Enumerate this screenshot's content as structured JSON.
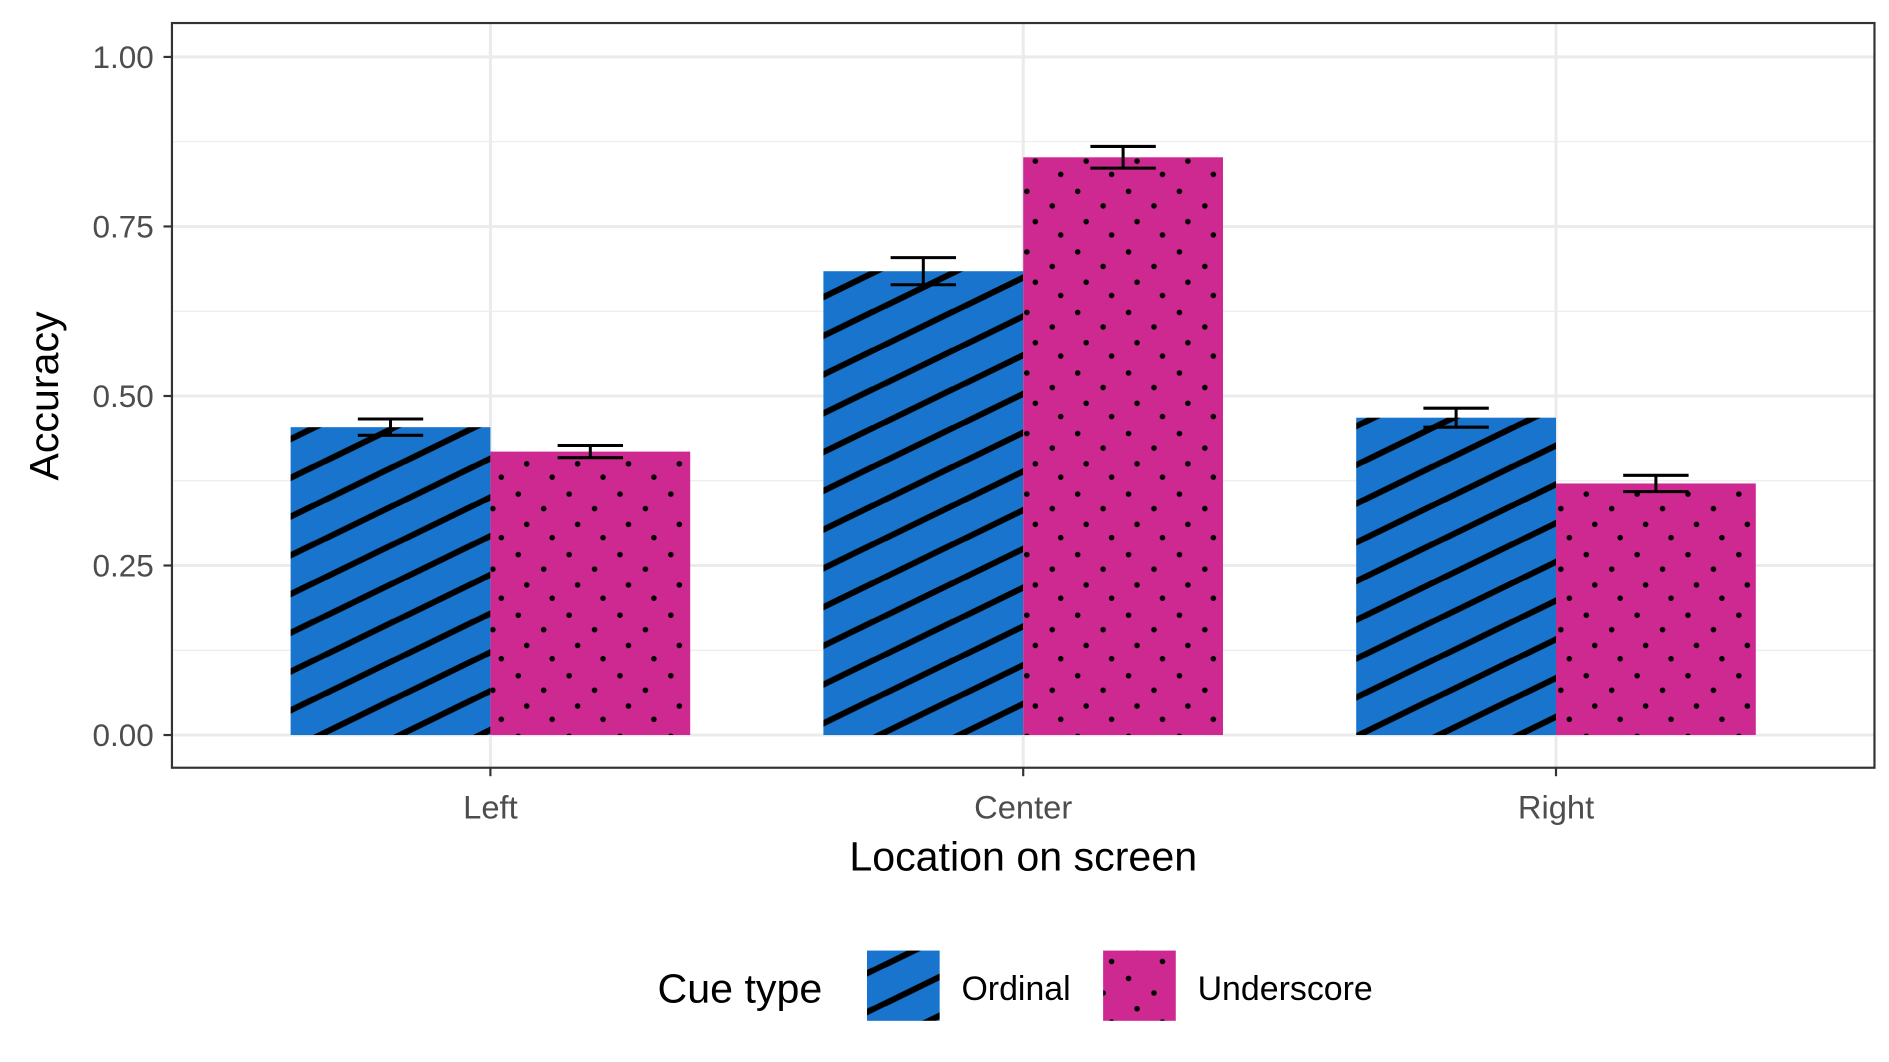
{
  "chart_data": {
    "type": "bar",
    "xlabel": "Location on screen",
    "ylabel": "Accuracy",
    "categories": [
      "Left",
      "Center",
      "Right"
    ],
    "ylim": [
      0,
      1.05
    ],
    "yticks": [
      0,
      0.25,
      0.5,
      0.75,
      1.0
    ],
    "ytick_labels": [
      "0.00",
      "0.25",
      "0.50",
      "0.75",
      "1.00"
    ],
    "grid": true,
    "legend": {
      "title": "Cue type",
      "position": "bottom"
    },
    "series": [
      {
        "name": "Ordinal",
        "color": "#1874CD",
        "pattern": "stripes",
        "values": [
          0.454,
          0.684,
          0.468
        ],
        "errors": [
          0.012,
          0.02,
          0.014
        ]
      },
      {
        "name": "Underscore",
        "color": "#CD2990",
        "pattern": "dots",
        "values": [
          0.418,
          0.852,
          0.371
        ],
        "errors": [
          0.009,
          0.016,
          0.012
        ]
      }
    ]
  }
}
